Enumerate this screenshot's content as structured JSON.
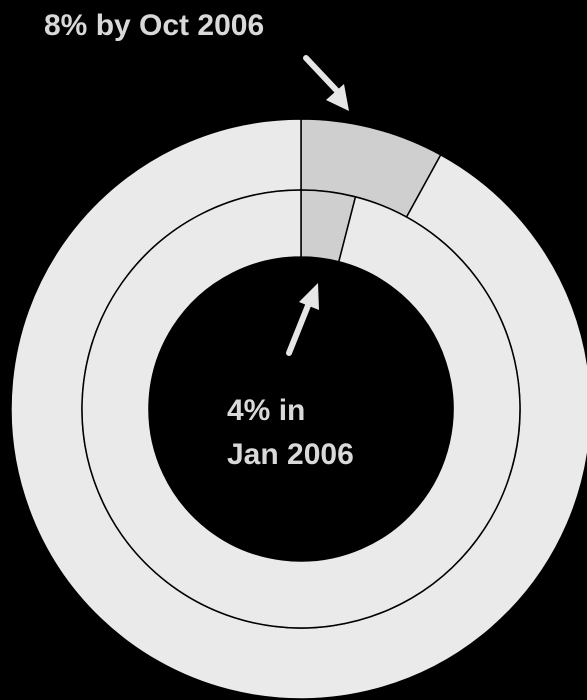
{
  "chart_data": {
    "type": "pie",
    "subtype": "nested-donut",
    "background": "#000000",
    "rings": [
      {
        "name": "Oct 2006",
        "ring": "outer",
        "slices": [
          {
            "value": 8,
            "color": "#cfcfcf"
          },
          {
            "value": 92,
            "color": "#eaeaea"
          }
        ]
      },
      {
        "name": "Jan 2006",
        "ring": "inner",
        "slices": [
          {
            "value": 4,
            "color": "#cfcfcf"
          },
          {
            "value": 96,
            "color": "#eaeaea"
          }
        ]
      }
    ],
    "annotations": {
      "outer": {
        "text": "8% by Oct 2006"
      },
      "inner": {
        "line1": "4% in",
        "line2": "Jan 2006"
      }
    },
    "colors": {
      "highlight": "#cfcfcf",
      "rest": "#eaeaea",
      "outline": "#000000",
      "label": "#d9d9d9"
    }
  }
}
